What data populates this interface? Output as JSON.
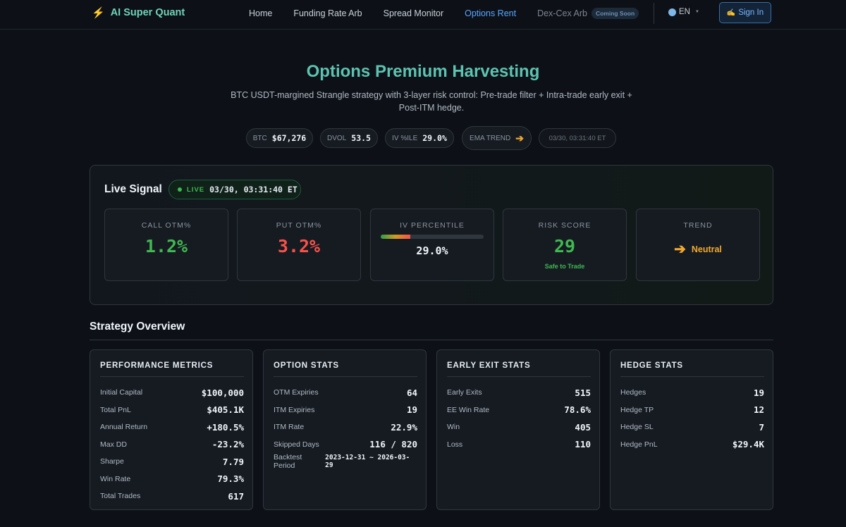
{
  "nav": {
    "brand": "AI Super Quant",
    "links": [
      "Home",
      "Funding Rate Arb",
      "Spread Monitor",
      "Options Rent"
    ],
    "disabled_link": "Dex-Cex Arb",
    "coming_soon": "Coming Soon",
    "lang": "EN",
    "sign_in": "Sign In"
  },
  "hero": {
    "title": "Options Premium Harvesting",
    "subtitle": "BTC USDT-margined Strangle strategy with 3-layer risk control: Pre-trade filter + Intra-trade early exit + Post-ITM hedge.",
    "pills": {
      "btc_label": "BTC",
      "btc_value": "$67,276",
      "dvol_label": "DVOL",
      "dvol_value": "53.5",
      "iv_label": "IV %ILE",
      "iv_value": "29.0%",
      "ema_label": "EMA TREND",
      "timestamp": "03/30, 03:31:40 ET"
    }
  },
  "signal": {
    "title": "Live Signal",
    "live_label": "LIVE",
    "live_timestamp": "03/30, 03:31:40 ET",
    "call_label": "CALL OTM%",
    "call_value": "1.2%",
    "put_label": "PUT OTM%",
    "put_value": "3.2%",
    "iv_label": "IV PERCENTILE",
    "iv_value": "29.0%",
    "iv_fraction": 0.29,
    "risk_label": "RISK SCORE",
    "risk_value": "29",
    "risk_note": "Safe to Trade",
    "trend_label": "TREND",
    "trend_value": "Neutral",
    "colors": {
      "green": "#3fb950",
      "red": "#f85149",
      "orange": "#f0a830"
    }
  },
  "overview": {
    "title": "Strategy Overview",
    "performance": {
      "title": "PERFORMANCE METRICS",
      "rows": [
        {
          "label": "Initial Capital",
          "value": "$100,000"
        },
        {
          "label": "Total PnL",
          "value": "$405.1K"
        },
        {
          "label": "Annual Return",
          "value": "+180.5%"
        },
        {
          "label": "Max DD",
          "value": "-23.2%"
        },
        {
          "label": "Sharpe",
          "value": "7.79"
        },
        {
          "label": "Win Rate",
          "value": "79.3%"
        },
        {
          "label": "Total Trades",
          "value": "617"
        }
      ]
    },
    "options": {
      "title": "OPTION STATS",
      "rows": [
        {
          "label": "OTM Expiries",
          "value": "64"
        },
        {
          "label": "ITM Expiries",
          "value": "19"
        },
        {
          "label": "ITM Rate",
          "value": "22.9%"
        },
        {
          "label": "Skipped Days",
          "value": "116 / 820"
        },
        {
          "label": "Backtest Period",
          "value": "2023-12-31 ~ 2026-03-29"
        }
      ]
    },
    "early_exit": {
      "title": "EARLY EXIT STATS",
      "rows": [
        {
          "label": "Early Exits",
          "value": "515"
        },
        {
          "label": "EE Win Rate",
          "value": "78.6%"
        },
        {
          "label": "Win",
          "value": "405"
        },
        {
          "label": "Loss",
          "value": "110"
        }
      ]
    },
    "hedge": {
      "title": "HEDGE STATS",
      "rows": [
        {
          "label": "Hedges",
          "value": "19"
        },
        {
          "label": "Hedge TP",
          "value": "12"
        },
        {
          "label": "Hedge SL",
          "value": "7"
        },
        {
          "label": "Hedge PnL",
          "value": "$29.4K"
        }
      ]
    }
  }
}
